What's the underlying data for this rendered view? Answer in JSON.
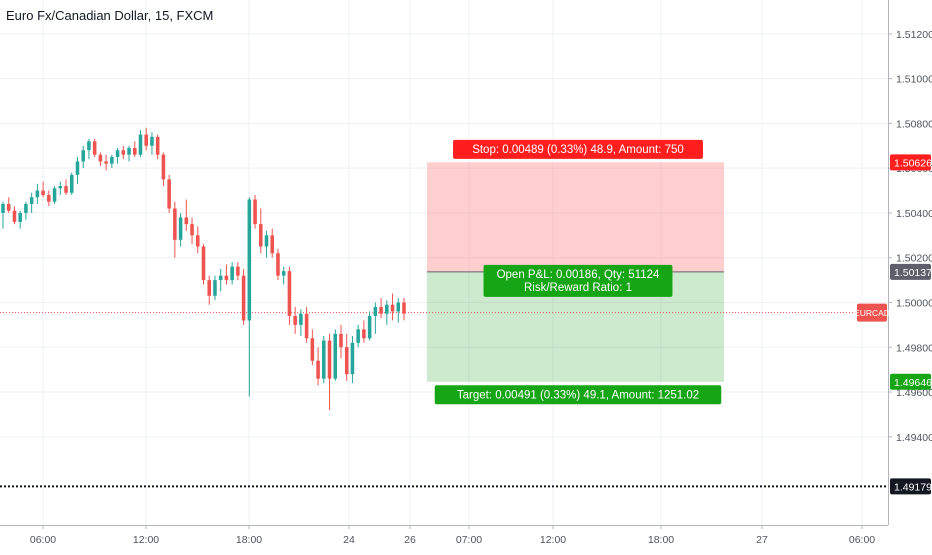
{
  "chart_data": {
    "type": "candlestick",
    "title": "Euro Fx/Canadian Dollar, 15, FXCM",
    "symbol": "EURCAD",
    "grid": true,
    "y_ticks": [
      "1.51200",
      "1.51000",
      "1.50800",
      "1.50600",
      "1.50400",
      "1.50200",
      "1.50000",
      "1.49800",
      "1.49600",
      "1.49400"
    ],
    "x_ticks": [
      "06:00",
      "12:00",
      "18:00",
      "24",
      "26",
      "07:00",
      "12:00",
      "18:00",
      "27",
      "06:00"
    ],
    "ylim": [
      1.49109,
      1.51351
    ],
    "last_price": 1.49955,
    "horizontal_line": {
      "price": 1.49179,
      "label": "1.49179"
    },
    "position": {
      "entry": {
        "price": 1.50137,
        "label": "1.50137"
      },
      "stop": {
        "price": 1.50626,
        "label": "1.50626"
      },
      "target": {
        "price": 1.49646,
        "label": "1.49646"
      },
      "stop_text": "Stop: 0.00489 (0.33%) 48.9, Amount: 750",
      "pnl_text": "Open P&L: 0.00186, Qty: 51124",
      "rr_text": "Risk/Reward Ratio: 1",
      "target_text": "Target: 0.00491 (0.33%) 49.1, Amount: 1251.02"
    },
    "candles_ohlc": [
      [
        1.504,
        1.5045,
        1.5033,
        1.5044
      ],
      [
        1.5044,
        1.5047,
        1.504,
        1.5041
      ],
      [
        1.5041,
        1.5043,
        1.5035,
        1.5036
      ],
      [
        1.5036,
        1.5041,
        1.5033,
        1.504
      ],
      [
        1.504,
        1.5045,
        1.5037,
        1.5044
      ],
      [
        1.5044,
        1.5049,
        1.504,
        1.5047
      ],
      [
        1.5047,
        1.5053,
        1.5044,
        1.505
      ],
      [
        1.505,
        1.5054,
        1.5047,
        1.5048
      ],
      [
        1.5048,
        1.505,
        1.5043,
        1.5045
      ],
      [
        1.5045,
        1.5052,
        1.5044,
        1.5051
      ],
      [
        1.5051,
        1.5054,
        1.5048,
        1.5052
      ],
      [
        1.5052,
        1.5055,
        1.5048,
        1.5049
      ],
      [
        1.5049,
        1.5058,
        1.5048,
        1.5057
      ],
      [
        1.5057,
        1.5065,
        1.5053,
        1.5063
      ],
      [
        1.5063,
        1.507,
        1.506,
        1.5068
      ],
      [
        1.5068,
        1.5073,
        1.5064,
        1.5072
      ],
      [
        1.5072,
        1.5073,
        1.5065,
        1.5066
      ],
      [
        1.5066,
        1.5067,
        1.5061,
        1.5063
      ],
      [
        1.5063,
        1.5066,
        1.5059,
        1.5062
      ],
      [
        1.5062,
        1.5066,
        1.506,
        1.5065
      ],
      [
        1.5065,
        1.5069,
        1.5062,
        1.5068
      ],
      [
        1.5068,
        1.507,
        1.5064,
        1.5066
      ],
      [
        1.5066,
        1.507,
        1.5063,
        1.5069
      ],
      [
        1.5069,
        1.5072,
        1.5065,
        1.5066
      ],
      [
        1.5066,
        1.5077,
        1.5065,
        1.5075
      ],
      [
        1.5075,
        1.5078,
        1.5068,
        1.507
      ],
      [
        1.507,
        1.5076,
        1.5066,
        1.5074
      ],
      [
        1.5074,
        1.5075,
        1.5064,
        1.5066
      ],
      [
        1.5066,
        1.5067,
        1.5052,
        1.5055
      ],
      [
        1.5055,
        1.5057,
        1.504,
        1.5042
      ],
      [
        1.5042,
        1.5045,
        1.502,
        1.5028
      ],
      [
        1.5028,
        1.504,
        1.5025,
        1.5038
      ],
      [
        1.5038,
        1.5046,
        1.5032,
        1.5035
      ],
      [
        1.5035,
        1.5038,
        1.5026,
        1.503
      ],
      [
        1.503,
        1.5034,
        1.5022,
        1.5025
      ],
      [
        1.5025,
        1.5026,
        1.5008,
        1.501
      ],
      [
        1.501,
        1.5012,
        1.4999,
        1.5003
      ],
      [
        1.5003,
        1.5012,
        1.5001,
        1.501
      ],
      [
        1.501,
        1.5015,
        1.5005,
        1.5012
      ],
      [
        1.5012,
        1.5017,
        1.5008,
        1.501
      ],
      [
        1.501,
        1.5018,
        1.5008,
        1.5016
      ],
      [
        1.5016,
        1.5018,
        1.501,
        1.5012
      ],
      [
        1.5012,
        1.5015,
        1.499,
        1.4992
      ],
      [
        1.4992,
        1.5047,
        1.4958,
        1.5046
      ],
      [
        1.5046,
        1.5048,
        1.5033,
        1.5035
      ],
      [
        1.5035,
        1.5042,
        1.5022,
        1.5025
      ],
      [
        1.5025,
        1.5032,
        1.502,
        1.503
      ],
      [
        1.503,
        1.5033,
        1.502,
        1.5022
      ],
      [
        1.5022,
        1.5024,
        1.501,
        1.5012
      ],
      [
        1.5012,
        1.5016,
        1.5008,
        1.5014
      ],
      [
        1.5014,
        1.5016,
        1.499,
        1.4994
      ],
      [
        1.4994,
        1.4998,
        1.4986,
        1.499
      ],
      [
        1.499,
        1.4997,
        1.4985,
        1.4995
      ],
      [
        1.4995,
        1.4998,
        1.4982,
        1.4984
      ],
      [
        1.4984,
        1.4988,
        1.4972,
        1.4974
      ],
      [
        1.4974,
        1.498,
        1.4963,
        1.4966
      ],
      [
        1.4966,
        1.4985,
        1.4964,
        1.4983
      ],
      [
        1.4983,
        1.4986,
        1.4952,
        1.4966
      ],
      [
        1.4966,
        1.4988,
        1.4965,
        1.4986
      ],
      [
        1.4986,
        1.499,
        1.4975,
        1.498
      ],
      [
        1.498,
        1.4986,
        1.4965,
        1.4968
      ],
      [
        1.4968,
        1.4985,
        1.4964,
        1.4982
      ],
      [
        1.4982,
        1.499,
        1.498,
        1.4988
      ],
      [
        1.4988,
        1.4992,
        1.4982,
        1.4984
      ],
      [
        1.4984,
        1.4996,
        1.4983,
        1.4994
      ],
      [
        1.4994,
        1.5,
        1.4986,
        1.4998
      ],
      [
        1.4998,
        1.5002,
        1.4993,
        1.4995
      ],
      [
        1.4995,
        1.5001,
        1.499,
        1.4999
      ],
      [
        1.4999,
        1.5004,
        1.4992,
        1.4996
      ],
      [
        1.4996,
        1.5002,
        1.4991,
        1.5
      ],
      [
        1.5,
        1.5002,
        1.4992,
        1.4995
      ]
    ]
  }
}
